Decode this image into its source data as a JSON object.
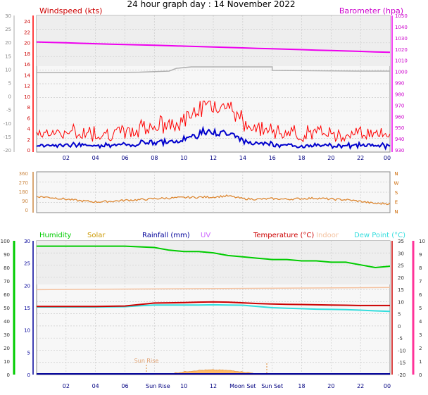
{
  "title": "24 hour graph day : 14 November 2022",
  "colors": {
    "wind": "#ff0000",
    "gust": "#ff0000",
    "avg": "#0000cc",
    "baro": "#ee00ee",
    "grey": "#b0b0b0",
    "dir": "#dd8833",
    "humidity": "#00cc00",
    "solar": "#cc9900",
    "rainfall": "#000099",
    "uv": "#cc66ff",
    "temperature": "#cc0000",
    "indoor": "#f4c2a0",
    "dewpoint": "#33dddd",
    "pink": "#ff3399",
    "solarfill": "#ffbb66",
    "bg": "#f7f7f7",
    "frame": "#888888"
  },
  "chart_data": [
    {
      "type": "line",
      "panel": "wind-barometer",
      "legend": {
        "left": "Windspeed (kts)",
        "right": "Barometer (hpa)"
      },
      "x_ticks": [
        "02",
        "04",
        "06",
        "08",
        "10",
        "12",
        "14",
        "16",
        "18",
        "20",
        "22",
        "00"
      ],
      "left_outer_ticks": [
        "30",
        "25",
        "20",
        "15",
        "10",
        "5",
        "0",
        "-5",
        "-10",
        "-15",
        "-20"
      ],
      "left_inner_ticks": [
        "24",
        "22",
        "20",
        "18",
        "16",
        "14",
        "12",
        "10",
        "8",
        "6",
        "4",
        "2",
        "0"
      ],
      "right_ticks": [
        "1050",
        "1040",
        "1030",
        "1020",
        "1010",
        "1000",
        "990",
        "980",
        "970",
        "960",
        "950",
        "940",
        "930"
      ],
      "xlim": [
        0,
        24
      ],
      "ylim_wind": [
        0,
        25
      ],
      "ylim_baro": [
        928,
        1050
      ],
      "series": [
        {
          "name": "Barometer (hpa)",
          "x": [
            0,
            1,
            2,
            3,
            4,
            5,
            6,
            7,
            8,
            9,
            10,
            11,
            12,
            13,
            14,
            15,
            16,
            17,
            18,
            19,
            20,
            21,
            22,
            23,
            24
          ],
          "values": [
            1026,
            1025.6,
            1025.2,
            1024.8,
            1024.4,
            1024,
            1023.6,
            1023.3,
            1023,
            1022.6,
            1022.2,
            1021.8,
            1021.4,
            1021,
            1020.6,
            1020.2,
            1019.8,
            1019.4,
            1019,
            1018.5,
            1018.2,
            1017.8,
            1017.4,
            1017,
            1016.6
          ]
        }
      ]
    },
    {
      "type": "line",
      "panel": "wind-direction",
      "right_labels": [
        "N",
        "W",
        "S",
        "E",
        "N"
      ],
      "left_ticks": [
        "360",
        "270",
        "180",
        "90",
        "0"
      ],
      "ylim": [
        0,
        360
      ],
      "x": [
        0,
        1,
        2,
        3,
        4,
        5,
        6,
        7,
        8,
        9,
        10,
        11,
        12,
        13,
        14,
        15,
        16,
        17,
        18,
        19,
        20,
        21,
        22,
        23,
        24
      ],
      "values": [
        135,
        125,
        110,
        95,
        85,
        90,
        100,
        105,
        115,
        120,
        125,
        128,
        130,
        140,
        115,
        110,
        115,
        110,
        115,
        120,
        110,
        105,
        90,
        70,
        70
      ]
    },
    {
      "type": "line",
      "panel": "temperature-humidity",
      "legend": [
        "Humidity",
        "Solar",
        "Rainfall (mm)",
        "UV",
        "Temperature (°C)",
        "Indoor",
        "Dew Point (°C)"
      ],
      "left_outer_ticks": [
        "100",
        "90",
        "80",
        "70",
        "60",
        "50",
        "40",
        "30",
        "20",
        "10",
        "0"
      ],
      "left_inner_ticks": [
        "30",
        "25",
        "20",
        "15",
        "10",
        "5",
        "0"
      ],
      "right_inner_ticks": [
        "35",
        "30",
        "25",
        "20",
        "15",
        "10",
        "5",
        "0",
        "-5",
        "-10",
        "-15",
        "-20"
      ],
      "right_outer_ticks": [
        "10",
        "9",
        "8",
        "7",
        "6",
        "5",
        "4",
        "3",
        "2",
        "1",
        "0"
      ],
      "x_ticks": [
        "02",
        "04",
        "06",
        "Sun Rise",
        "10",
        "12",
        "Moon Set",
        "Sun Set",
        "18",
        "20",
        "22",
        "00"
      ],
      "ylim": [
        -20,
        35
      ],
      "annotations": [
        "Sun Rise"
      ],
      "series": [
        {
          "name": "Humidity",
          "x": [
            0,
            2,
            4,
            6,
            8,
            9,
            10,
            11,
            12,
            13,
            14,
            15,
            16,
            17,
            18,
            19,
            20,
            21,
            22,
            23,
            24
          ],
          "values": [
            96,
            96,
            96,
            96,
            95,
            93,
            92,
            92,
            91,
            89,
            88,
            87,
            86,
            86,
            85,
            85,
            84,
            84,
            82,
            80,
            81
          ]
        },
        {
          "name": "Temperature (°C)",
          "x": [
            0,
            2,
            4,
            6,
            7,
            8,
            9,
            10,
            11,
            12,
            13,
            14,
            15,
            16,
            17,
            18,
            19,
            20,
            21,
            22,
            23,
            24
          ],
          "values": [
            8.0,
            8.0,
            8.0,
            8.2,
            8.8,
            9.4,
            9.5,
            9.6,
            9.8,
            9.9,
            9.8,
            9.5,
            9.2,
            9.0,
            8.9,
            8.8,
            8.7,
            8.6,
            8.5,
            8.4,
            8.4,
            8.4
          ]
        },
        {
          "name": "Dew Point (°C)",
          "x": [
            0,
            2,
            4,
            6,
            7,
            8,
            9,
            10,
            11,
            12,
            13,
            14,
            15,
            16,
            17,
            18,
            19,
            20,
            21,
            22,
            23,
            24
          ],
          "values": [
            7.8,
            7.8,
            7.8,
            7.9,
            8.3,
            8.6,
            8.6,
            8.6,
            8.6,
            8.7,
            8.6,
            8.5,
            8.0,
            7.5,
            7.3,
            7.1,
            6.9,
            6.8,
            6.7,
            6.5,
            6.2,
            6.0
          ]
        },
        {
          "name": "Indoor",
          "x": [
            0,
            24
          ],
          "values": [
            14.9,
            15.8
          ]
        }
      ]
    }
  ]
}
